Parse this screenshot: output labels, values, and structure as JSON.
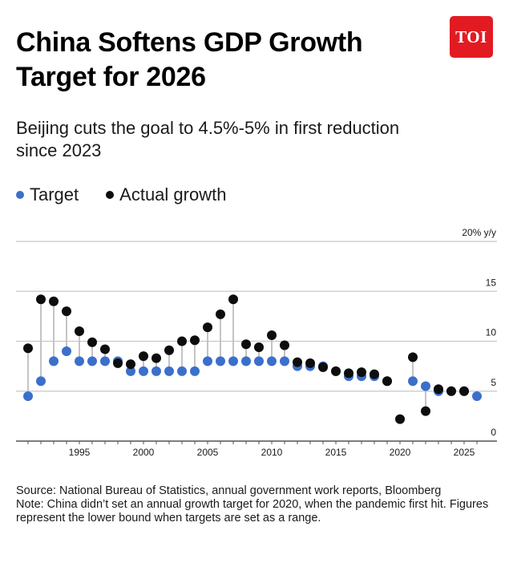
{
  "header": {
    "title": "China Softens GDP Growth Target for 2026",
    "logo_text": "TOI",
    "subtitle": "Beijing cuts the goal to 4.5%-5% in first reduction since 2023"
  },
  "legend": {
    "target_label": "Target",
    "actual_label": "Actual growth"
  },
  "colors": {
    "target": "#3b6fcc",
    "actual": "#0d0d0d",
    "connector": "#c4c4c4",
    "gridline": "#c8c8c8",
    "brand": "#e21b22"
  },
  "chart_data": {
    "type": "scatter",
    "title": "China Softens GDP Growth Target for 2026",
    "subtitle": "Beijing cuts the goal to 4.5%-5% in first reduction since 2023",
    "ylabel": "20% y/y",
    "ylim": [
      0,
      20
    ],
    "xlim": [
      1990,
      2027
    ],
    "grid": true,
    "y_ticks": [
      0,
      5,
      10,
      15,
      20
    ],
    "y_tick_labels": [
      "0",
      "5",
      "10",
      "15",
      "20% y/y"
    ],
    "x_ticks": [
      1995,
      2000,
      2005,
      2010,
      2015,
      2020,
      2025
    ],
    "x_tick_labels": [
      "1995",
      "2000",
      "2005",
      "2010",
      "2015",
      "2020",
      "2025"
    ],
    "years": [
      1991,
      1992,
      1993,
      1994,
      1995,
      1996,
      1997,
      1998,
      1999,
      2000,
      2001,
      2002,
      2003,
      2004,
      2005,
      2006,
      2007,
      2008,
      2009,
      2010,
      2011,
      2012,
      2013,
      2014,
      2015,
      2016,
      2017,
      2018,
      2019,
      2020,
      2021,
      2022,
      2023,
      2024,
      2025,
      2026
    ],
    "series": [
      {
        "name": "Target",
        "values": [
          4.5,
          6,
          8,
          9,
          8,
          8,
          8,
          8,
          7,
          7,
          7,
          7,
          7,
          7,
          8,
          8,
          8,
          8,
          8,
          8,
          8,
          7.5,
          7.5,
          7.5,
          7,
          6.5,
          6.5,
          6.5,
          6,
          null,
          6,
          5.5,
          5,
          5,
          5,
          4.5
        ]
      },
      {
        "name": "Actual growth",
        "values": [
          9.3,
          14.2,
          14,
          13,
          11,
          9.9,
          9.2,
          7.8,
          7.7,
          8.5,
          8.3,
          9.1,
          10,
          10.1,
          11.4,
          12.7,
          14.2,
          9.7,
          9.4,
          10.6,
          9.6,
          7.9,
          7.8,
          7.4,
          7,
          6.8,
          6.9,
          6.7,
          6,
          2.2,
          8.4,
          3,
          5.2,
          5,
          5,
          null
        ]
      }
    ]
  },
  "footer": {
    "source": "Source: National Bureau of Statistics, annual government work reports, Bloomberg",
    "note": "Note: China didn’t set an annual growth target for 2020, when the pandemic first hit. Figures represent the lower bound when targets are set as a range."
  }
}
